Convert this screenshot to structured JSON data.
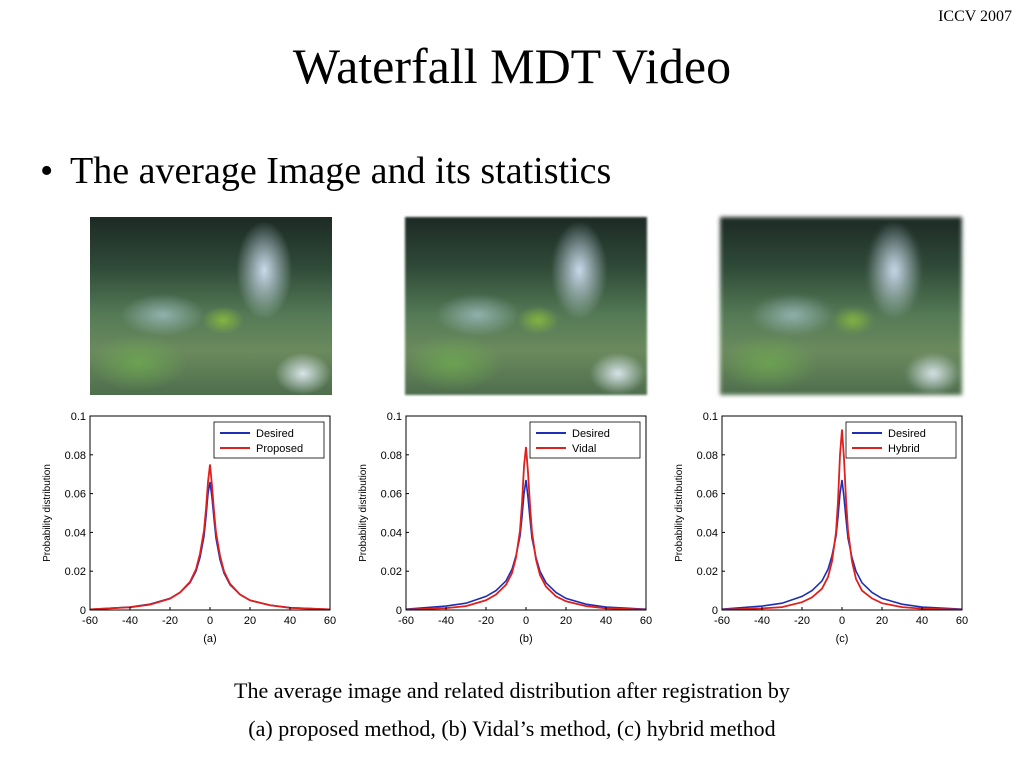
{
  "header": {
    "conference": "ICCV 2007"
  },
  "slide": {
    "title": "Waterfall MDT Video",
    "bullet": "The average Image and its statistics",
    "caption_line1": "The average image and related distribution after registration by",
    "caption_line2": "(a) proposed method, (b) Vidal’s method, (c) hybrid method"
  },
  "images": [
    {
      "label": "average image (a)"
    },
    {
      "label": "average image (b)"
    },
    {
      "label": "average image (c)"
    }
  ],
  "chart_data": [
    {
      "type": "line",
      "xlabel": "(a)",
      "ylabel": "Probability distribution",
      "xlim": [
        -60,
        60
      ],
      "ylim": [
        0,
        0.1
      ],
      "xticks": [
        -60,
        -40,
        -20,
        0,
        20,
        40,
        60
      ],
      "yticks": [
        "0",
        "0.02",
        "0.04",
        "0.06",
        "0.08",
        "0.1"
      ],
      "legend_position": "top-right",
      "series": [
        {
          "name": "Desired",
          "color": "#1f2fb4",
          "x": [
            -60,
            -40,
            -30,
            -20,
            -15,
            -10,
            -7,
            -5,
            -3,
            -2,
            -1,
            0,
            1,
            2,
            3,
            5,
            7,
            10,
            15,
            20,
            30,
            40,
            60
          ],
          "y": [
            0.0003,
            0.0015,
            0.003,
            0.006,
            0.009,
            0.014,
            0.02,
            0.027,
            0.038,
            0.048,
            0.06,
            0.066,
            0.058,
            0.047,
            0.037,
            0.026,
            0.019,
            0.013,
            0.008,
            0.005,
            0.0025,
            0.0012,
            0.0003
          ]
        },
        {
          "name": "Proposed",
          "color": "#e0201c",
          "x": [
            -60,
            -40,
            -30,
            -20,
            -15,
            -10,
            -7,
            -5,
            -3,
            -2,
            -1,
            0,
            1,
            2,
            3,
            5,
            7,
            10,
            15,
            20,
            30,
            40,
            60
          ],
          "y": [
            0.0003,
            0.0014,
            0.0028,
            0.0058,
            0.009,
            0.0145,
            0.021,
            0.029,
            0.041,
            0.052,
            0.066,
            0.075,
            0.064,
            0.051,
            0.04,
            0.028,
            0.02,
            0.0135,
            0.008,
            0.005,
            0.0024,
            0.0011,
            0.0003
          ]
        }
      ]
    },
    {
      "type": "line",
      "xlabel": "(b)",
      "ylabel": "Probability distribution",
      "xlim": [
        -60,
        60
      ],
      "ylim": [
        0,
        0.1
      ],
      "xticks": [
        -60,
        -40,
        -20,
        0,
        20,
        40,
        60
      ],
      "yticks": [
        "0",
        "0.02",
        "0.04",
        "0.06",
        "0.08",
        "0.1"
      ],
      "legend_position": "top-right",
      "series": [
        {
          "name": "Desired",
          "color": "#1f2fb4",
          "x": [
            -60,
            -40,
            -30,
            -20,
            -15,
            -10,
            -7,
            -5,
            -3,
            -2,
            -1,
            0,
            1,
            2,
            3,
            5,
            7,
            10,
            15,
            20,
            30,
            40,
            60
          ],
          "y": [
            0.0004,
            0.002,
            0.0035,
            0.007,
            0.01,
            0.015,
            0.021,
            0.028,
            0.038,
            0.048,
            0.06,
            0.067,
            0.058,
            0.047,
            0.037,
            0.027,
            0.02,
            0.014,
            0.009,
            0.006,
            0.003,
            0.0015,
            0.0004
          ]
        },
        {
          "name": "Vidal",
          "color": "#e0201c",
          "x": [
            -60,
            -40,
            -30,
            -20,
            -15,
            -10,
            -7,
            -5,
            -3,
            -2,
            -1,
            0,
            1,
            2,
            3,
            5,
            7,
            10,
            15,
            20,
            30,
            40,
            60
          ],
          "y": [
            0.0002,
            0.001,
            0.002,
            0.005,
            0.008,
            0.013,
            0.019,
            0.027,
            0.041,
            0.055,
            0.074,
            0.084,
            0.071,
            0.054,
            0.04,
            0.026,
            0.018,
            0.012,
            0.007,
            0.0045,
            0.002,
            0.0009,
            0.0002
          ]
        }
      ]
    },
    {
      "type": "line",
      "xlabel": "(c)",
      "ylabel": "Probability distribution",
      "xlim": [
        -60,
        60
      ],
      "ylim": [
        0,
        0.1
      ],
      "xticks": [
        -60,
        -40,
        -20,
        0,
        20,
        40,
        60
      ],
      "yticks": [
        "0",
        "0.02",
        "0.04",
        "0.06",
        "0.08",
        "0.1"
      ],
      "legend_position": "top-right",
      "series": [
        {
          "name": "Desired",
          "color": "#1f2fb4",
          "x": [
            -60,
            -40,
            -30,
            -20,
            -15,
            -10,
            -7,
            -5,
            -3,
            -2,
            -1,
            0,
            1,
            2,
            3,
            5,
            7,
            10,
            15,
            20,
            30,
            40,
            60
          ],
          "y": [
            0.0004,
            0.002,
            0.0035,
            0.007,
            0.01,
            0.015,
            0.021,
            0.028,
            0.038,
            0.048,
            0.06,
            0.067,
            0.058,
            0.047,
            0.037,
            0.027,
            0.02,
            0.014,
            0.009,
            0.006,
            0.003,
            0.0015,
            0.0004
          ]
        },
        {
          "name": "Hybrid",
          "color": "#e0201c",
          "x": [
            -60,
            -40,
            -30,
            -20,
            -15,
            -10,
            -7,
            -5,
            -3,
            -2,
            -1,
            0,
            1,
            2,
            3,
            5,
            7,
            10,
            15,
            20,
            30,
            40,
            60
          ],
          "y": [
            0.0002,
            0.0008,
            0.0015,
            0.004,
            0.0065,
            0.011,
            0.017,
            0.025,
            0.04,
            0.056,
            0.08,
            0.093,
            0.078,
            0.057,
            0.041,
            0.025,
            0.016,
            0.01,
            0.006,
            0.0035,
            0.0015,
            0.0007,
            0.0002
          ]
        }
      ]
    }
  ]
}
